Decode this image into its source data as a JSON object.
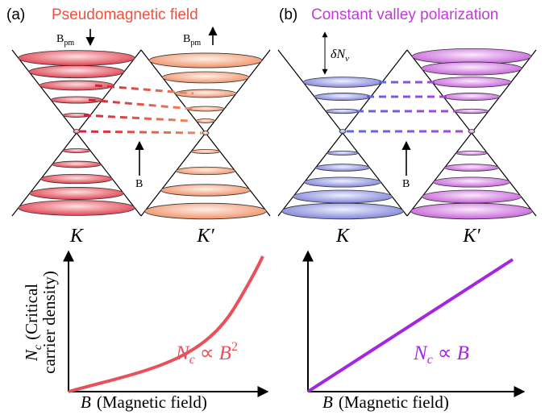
{
  "panel_a": {
    "label": "(a)",
    "title": "Pseudomagnetic field",
    "bpm_left": {
      "base": "B",
      "sub": "pm"
    },
    "bpm_right": {
      "base": "B",
      "sub": "pm"
    },
    "field_label": "B",
    "valleys": [
      "K",
      "K′"
    ],
    "plot": {
      "y_label": {
        "symbol_base": "N",
        "symbol_sub": "c",
        "line1": "(Critical",
        "line2": "carrier density)"
      },
      "x_label": {
        "symbol": "B",
        "text": "(Magnetic field)"
      },
      "relation": {
        "lhs_base": "N",
        "lhs_sub": "c",
        "op": "∝",
        "rhs_base": "B",
        "rhs_sup": "2"
      }
    }
  },
  "panel_b": {
    "label": "(b)",
    "title": "Constant valley polarization",
    "gap_label": {
      "prefix": "δ",
      "base": "N",
      "sub": "v"
    },
    "field_label": "B",
    "valleys": [
      "K",
      "K′"
    ],
    "plot": {
      "x_label": {
        "symbol": "B",
        "text": "(Magnetic field)"
      },
      "relation": {
        "lhs_base": "N",
        "lhs_sub": "c",
        "op": "∝",
        "rhs_base": "B"
      }
    }
  }
}
